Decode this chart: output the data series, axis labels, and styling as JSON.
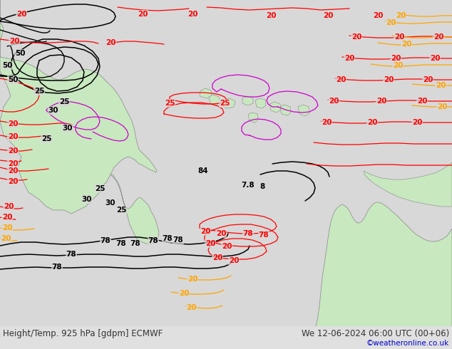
{
  "bottom_label_left": "Height/Temp. 925 hPa [gdpm] ECMWF",
  "bottom_label_right": "We 12-06-2024 06:00 UTC (00+06)",
  "copyright": "©weatheronline.co.uk",
  "label_color": "#333333",
  "copyright_color": "#0000cc",
  "fig_width": 6.34,
  "fig_height": 4.9,
  "dpi": 100,
  "label_fontsize": 8.5,
  "copyright_fontsize": 7.5,
  "bg_color": "#d8d8d8",
  "map_light_green": "#c8e6c8",
  "map_dark_outline": "#666666"
}
